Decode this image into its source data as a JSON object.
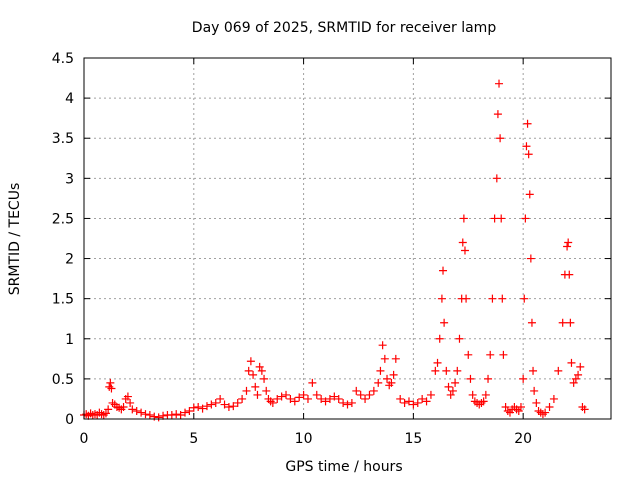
{
  "chart_data": {
    "type": "scatter",
    "title": "Day 069 of 2025, SRMTID for receiver lamp",
    "xlabel": "GPS time / hours",
    "ylabel": "SRMTID / TECUs",
    "xlim": [
      0,
      24
    ],
    "ylim": [
      0,
      4.5
    ],
    "x_ticks": [
      0,
      5,
      10,
      15,
      20
    ],
    "x_tick_labels": [
      "0",
      "5",
      "10",
      "15",
      "20"
    ],
    "y_ticks": [
      0,
      0.5,
      1,
      1.5,
      2,
      2.5,
      3,
      3.5,
      4,
      4.5
    ],
    "y_tick_labels": [
      "0",
      "0.5",
      "1",
      "1.5",
      "2",
      "2.5",
      "3",
      "3.5",
      "4",
      "4.5"
    ],
    "grid": true,
    "marker": "plus",
    "series": [
      {
        "name": "SRMTID",
        "color": "#ff0000",
        "x": [
          0.0,
          0.1,
          0.2,
          0.3,
          0.4,
          0.5,
          0.6,
          0.7,
          0.8,
          0.9,
          1.0,
          1.1,
          1.15,
          1.2,
          1.25,
          1.3,
          1.4,
          1.5,
          1.6,
          1.7,
          1.8,
          1.9,
          2.0,
          2.1,
          2.2,
          2.4,
          2.6,
          2.8,
          3.0,
          3.2,
          3.4,
          3.6,
          3.8,
          4.0,
          4.2,
          4.4,
          4.6,
          4.8,
          5.0,
          5.2,
          5.4,
          5.6,
          5.8,
          6.0,
          6.2,
          6.4,
          6.6,
          6.8,
          7.0,
          7.2,
          7.4,
          7.5,
          7.6,
          7.7,
          7.8,
          7.9,
          8.0,
          8.1,
          8.2,
          8.3,
          8.4,
          8.5,
          8.6,
          8.8,
          9.0,
          9.2,
          9.4,
          9.6,
          9.8,
          10.0,
          10.2,
          10.4,
          10.6,
          10.8,
          11.0,
          11.2,
          11.4,
          11.6,
          11.8,
          12.0,
          12.2,
          12.4,
          12.6,
          12.8,
          13.0,
          13.2,
          13.4,
          13.5,
          13.6,
          13.7,
          13.8,
          13.9,
          14.0,
          14.1,
          14.2,
          14.4,
          14.6,
          14.8,
          15.0,
          15.2,
          15.4,
          15.6,
          15.8,
          16.0,
          16.1,
          16.2,
          16.3,
          16.35,
          16.4,
          16.5,
          16.6,
          16.7,
          16.8,
          16.9,
          17.0,
          17.1,
          17.2,
          17.25,
          17.3,
          17.35,
          17.4,
          17.5,
          17.6,
          17.7,
          17.8,
          17.9,
          18.0,
          18.1,
          18.2,
          18.3,
          18.4,
          18.5,
          18.6,
          18.7,
          18.8,
          18.85,
          18.9,
          18.95,
          19.0,
          19.05,
          19.1,
          19.2,
          19.3,
          19.4,
          19.5,
          19.6,
          19.7,
          19.8,
          19.9,
          20.0,
          20.05,
          20.1,
          20.15,
          20.2,
          20.25,
          20.3,
          20.35,
          20.4,
          20.45,
          20.5,
          20.6,
          20.7,
          20.8,
          20.9,
          21.0,
          21.2,
          21.4,
          21.6,
          21.8,
          21.9,
          22.0,
          22.05,
          22.1,
          22.15,
          22.2,
          22.3,
          22.4,
          22.5,
          22.6,
          22.7,
          22.8
        ],
        "y": [
          0.05,
          0.06,
          0.04,
          0.07,
          0.05,
          0.06,
          0.05,
          0.08,
          0.06,
          0.05,
          0.07,
          0.12,
          0.4,
          0.45,
          0.38,
          0.2,
          0.18,
          0.15,
          0.14,
          0.12,
          0.15,
          0.25,
          0.28,
          0.2,
          0.12,
          0.1,
          0.08,
          0.06,
          0.05,
          0.03,
          0.02,
          0.04,
          0.05,
          0.05,
          0.06,
          0.05,
          0.08,
          0.1,
          0.14,
          0.15,
          0.13,
          0.16,
          0.18,
          0.2,
          0.25,
          0.18,
          0.15,
          0.16,
          0.2,
          0.25,
          0.35,
          0.6,
          0.72,
          0.55,
          0.4,
          0.3,
          0.65,
          0.6,
          0.5,
          0.35,
          0.25,
          0.22,
          0.2,
          0.25,
          0.28,
          0.3,
          0.25,
          0.22,
          0.27,
          0.3,
          0.25,
          0.45,
          0.3,
          0.25,
          0.22,
          0.25,
          0.28,
          0.25,
          0.2,
          0.18,
          0.2,
          0.35,
          0.3,
          0.25,
          0.3,
          0.35,
          0.45,
          0.6,
          0.92,
          0.75,
          0.5,
          0.42,
          0.45,
          0.55,
          0.75,
          0.25,
          0.2,
          0.22,
          0.18,
          0.2,
          0.25,
          0.22,
          0.3,
          0.6,
          0.7,
          1.0,
          1.5,
          1.85,
          1.2,
          0.6,
          0.4,
          0.3,
          0.35,
          0.45,
          0.6,
          1.0,
          1.5,
          2.2,
          2.5,
          2.1,
          1.5,
          0.8,
          0.5,
          0.3,
          0.22,
          0.2,
          0.18,
          0.2,
          0.22,
          0.3,
          0.5,
          0.8,
          1.5,
          2.5,
          3.0,
          3.8,
          4.18,
          3.5,
          2.5,
          1.5,
          0.8,
          0.15,
          0.1,
          0.08,
          0.12,
          0.15,
          0.12,
          0.1,
          0.15,
          0.5,
          1.5,
          2.5,
          3.4,
          3.68,
          3.3,
          2.8,
          2.0,
          1.2,
          0.6,
          0.35,
          0.2,
          0.1,
          0.08,
          0.06,
          0.08,
          0.15,
          0.25,
          0.6,
          1.2,
          1.8,
          2.15,
          2.2,
          1.8,
          1.2,
          0.7,
          0.45,
          0.5,
          0.55,
          0.65,
          0.15,
          0.12
        ]
      }
    ]
  }
}
